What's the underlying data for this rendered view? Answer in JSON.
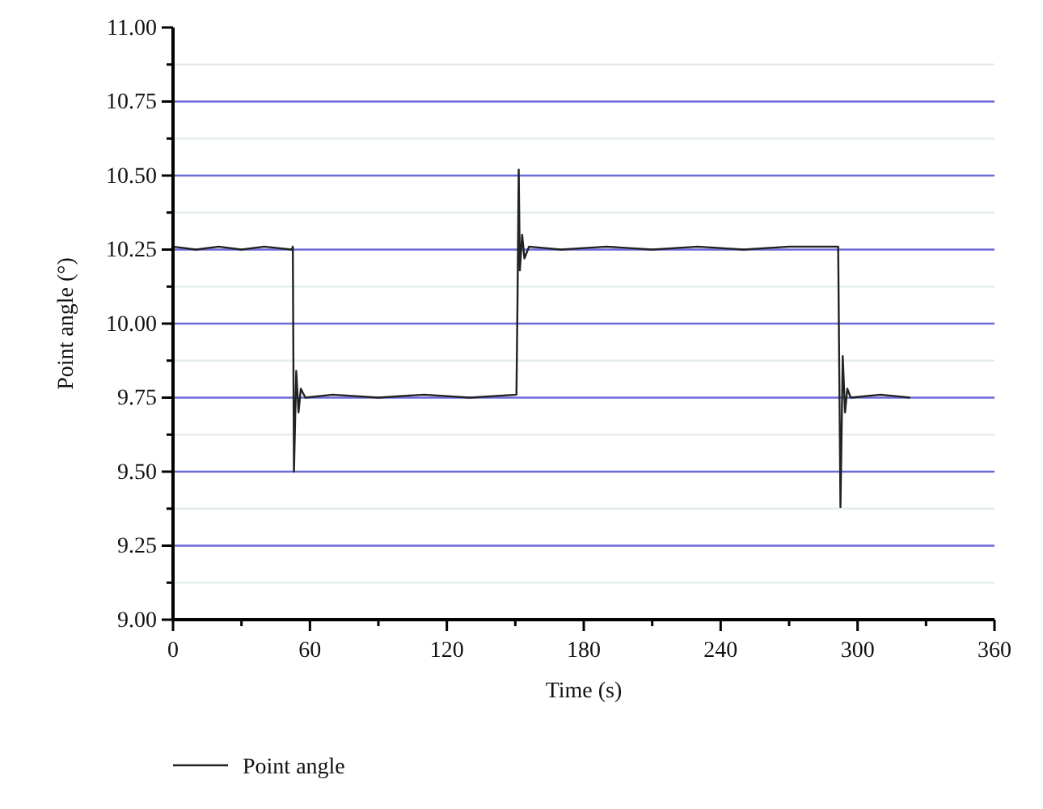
{
  "chart_data": {
    "type": "line",
    "xlabel": "Time (s)",
    "ylabel": "Point angle (°)",
    "xlim": [
      0,
      360
    ],
    "xticks": [
      0,
      {
        "value": 30,
        "label": null
      },
      60,
      {
        "value": 90,
        "label": null
      },
      120,
      {
        "value": 150,
        "label": null
      },
      180,
      {
        "value": 210,
        "label": null
      },
      240,
      {
        "value": 270,
        "label": null
      },
      300,
      {
        "value": 330,
        "label": null
      },
      360
    ],
    "ylim": [
      9,
      11
    ],
    "yticks": [
      {
        "value": 9,
        "label": "9.00"
      },
      {
        "value": 9.125,
        "label": null
      },
      {
        "value": 9.25,
        "label": "9.25"
      },
      {
        "value": 9.375,
        "label": null
      },
      {
        "value": 9.5,
        "label": "9.50"
      },
      {
        "value": 9.625,
        "label": null
      },
      {
        "value": 9.75,
        "label": "9.75"
      },
      {
        "value": 9.875,
        "label": null
      },
      {
        "value": 10,
        "label": "10.00"
      },
      {
        "value": 10.125,
        "label": null
      },
      {
        "value": 10.25,
        "label": "10.25"
      },
      {
        "value": 10.375,
        "label": null
      },
      {
        "value": 10.5,
        "label": "10.50"
      },
      {
        "value": 10.625,
        "label": null
      },
      {
        "value": 10.75,
        "label": "10.75"
      },
      {
        "value": 10.875,
        "label": null
      },
      {
        "value": 11,
        "label": "11.00"
      }
    ],
    "grid": "y",
    "legend": "bottom",
    "line_style": "solid",
    "marker": "none",
    "series": [
      {
        "name": "Point angle",
        "color": "#222222",
        "x": [
          0,
          10,
          20,
          30,
          40,
          52,
          52.5,
          53,
          54,
          55,
          56,
          58,
          70,
          90,
          110,
          130,
          150.5,
          151,
          151.5,
          152,
          153,
          154,
          156,
          170,
          190,
          210,
          230,
          250,
          270,
          291.5,
          292.5,
          293.5,
          294.5,
          295.5,
          297,
          310,
          323
        ],
        "values": [
          10.26,
          10.25,
          10.26,
          10.25,
          10.26,
          10.25,
          10.26,
          9.5,
          9.84,
          9.7,
          9.78,
          9.75,
          9.76,
          9.75,
          9.76,
          9.75,
          9.76,
          10.1,
          10.52,
          10.18,
          10.3,
          10.22,
          10.26,
          10.25,
          10.26,
          10.25,
          10.26,
          10.25,
          10.26,
          10.26,
          9.38,
          9.89,
          9.7,
          9.78,
          9.75,
          9.76,
          9.75
        ]
      }
    ]
  }
}
